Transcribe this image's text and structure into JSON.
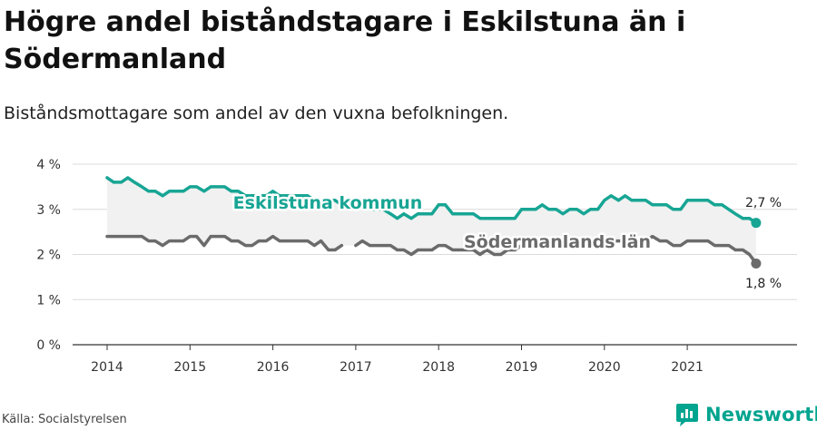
{
  "title": "Högre andel biståndstagare i Eskilstuna än i Södermanland",
  "subtitle": "Biståndsmottagare som andel av den vuxna befolkningen.",
  "source": "Källa: Socialstyrelsen",
  "brand": {
    "name": "Newsworthy",
    "icon": "newsworthy-logo-icon"
  },
  "colors": {
    "eskilstuna": "#18a594",
    "sodermanland": "#6b6b6b",
    "fill": "#f1f1f1"
  },
  "chart_data": {
    "type": "line",
    "x_ticks": [
      "2014",
      "2015",
      "2016",
      "2017",
      "2018",
      "2019",
      "2020",
      "2021"
    ],
    "y_ticks": [
      "0 %",
      "1 %",
      "2 %",
      "3 %",
      "4 %"
    ],
    "ylim": [
      0,
      4
    ],
    "grid": true,
    "xlim": [
      2014,
      2022.08
    ],
    "series": [
      {
        "name": "Eskilstuna kommun",
        "end_label": "2,7 %",
        "points": [
          [
            2014.0,
            3.7
          ],
          [
            2014.08,
            3.6
          ],
          [
            2014.17,
            3.6
          ],
          [
            2014.25,
            3.7
          ],
          [
            2014.33,
            3.6
          ],
          [
            2014.42,
            3.5
          ],
          [
            2014.5,
            3.4
          ],
          [
            2014.58,
            3.4
          ],
          [
            2014.67,
            3.3
          ],
          [
            2014.75,
            3.4
          ],
          [
            2014.83,
            3.4
          ],
          [
            2014.92,
            3.4
          ],
          [
            2015.0,
            3.5
          ],
          [
            2015.08,
            3.5
          ],
          [
            2015.17,
            3.4
          ],
          [
            2015.25,
            3.5
          ],
          [
            2015.33,
            3.5
          ],
          [
            2015.42,
            3.5
          ],
          [
            2015.5,
            3.4
          ],
          [
            2015.58,
            3.4
          ],
          [
            2015.67,
            3.3
          ],
          [
            2015.75,
            3.3
          ],
          [
            2015.83,
            3.3
          ],
          [
            2015.92,
            3.3
          ],
          [
            2016.0,
            3.4
          ],
          [
            2016.08,
            3.3
          ],
          [
            2016.17,
            3.3
          ],
          [
            2016.25,
            3.3
          ],
          [
            2016.33,
            3.3
          ],
          [
            2016.42,
            3.3
          ],
          [
            2016.5,
            3.2
          ],
          [
            2016.58,
            3.2
          ],
          [
            2016.67,
            3.2
          ],
          [
            2016.75,
            3.2
          ],
          [
            2016.83,
            3.1
          ],
          [
            2016.92,
            3.1
          ],
          [
            2017.0,
            3.1
          ],
          [
            2017.08,
            3.1
          ],
          [
            2017.17,
            3.0
          ],
          [
            2017.25,
            3.0
          ],
          [
            2017.33,
            3.0
          ],
          [
            2017.42,
            2.9
          ],
          [
            2017.5,
            2.8
          ],
          [
            2017.58,
            2.9
          ],
          [
            2017.67,
            2.8
          ],
          [
            2017.75,
            2.9
          ],
          [
            2017.83,
            2.9
          ],
          [
            2017.92,
            2.9
          ],
          [
            2018.0,
            3.1
          ],
          [
            2018.08,
            3.1
          ],
          [
            2018.17,
            2.9
          ],
          [
            2018.25,
            2.9
          ],
          [
            2018.33,
            2.9
          ],
          [
            2018.42,
            2.9
          ],
          [
            2018.5,
            2.8
          ],
          [
            2018.58,
            2.8
          ],
          [
            2018.67,
            2.8
          ],
          [
            2018.75,
            2.8
          ],
          [
            2018.83,
            2.8
          ],
          [
            2018.92,
            2.8
          ],
          [
            2019.0,
            3.0
          ],
          [
            2019.08,
            3.0
          ],
          [
            2019.17,
            3.0
          ],
          [
            2019.25,
            3.1
          ],
          [
            2019.33,
            3.0
          ],
          [
            2019.42,
            3.0
          ],
          [
            2019.5,
            2.9
          ],
          [
            2019.58,
            3.0
          ],
          [
            2019.67,
            3.0
          ],
          [
            2019.75,
            2.9
          ],
          [
            2019.83,
            3.0
          ],
          [
            2019.92,
            3.0
          ],
          [
            2020.0,
            3.2
          ],
          [
            2020.08,
            3.3
          ],
          [
            2020.17,
            3.2
          ],
          [
            2020.25,
            3.3
          ],
          [
            2020.33,
            3.2
          ],
          [
            2020.42,
            3.2
          ],
          [
            2020.5,
            3.2
          ],
          [
            2020.58,
            3.1
          ],
          [
            2020.67,
            3.1
          ],
          [
            2020.75,
            3.1
          ],
          [
            2020.83,
            3.0
          ],
          [
            2020.92,
            3.0
          ],
          [
            2021.0,
            3.2
          ],
          [
            2021.08,
            3.2
          ],
          [
            2021.17,
            3.2
          ],
          [
            2021.25,
            3.2
          ],
          [
            2021.33,
            3.1
          ],
          [
            2021.42,
            3.1
          ],
          [
            2021.5,
            3.0
          ],
          [
            2021.58,
            2.9
          ],
          [
            2021.67,
            2.8
          ],
          [
            2021.75,
            2.8
          ],
          [
            2021.83,
            2.7
          ]
        ]
      },
      {
        "name": "Södermanlands län",
        "end_label": "1,8 %",
        "points": [
          [
            2014.0,
            2.4
          ],
          [
            2014.08,
            2.4
          ],
          [
            2014.17,
            2.4
          ],
          [
            2014.25,
            2.4
          ],
          [
            2014.33,
            2.4
          ],
          [
            2014.42,
            2.4
          ],
          [
            2014.5,
            2.3
          ],
          [
            2014.58,
            2.3
          ],
          [
            2014.67,
            2.2
          ],
          [
            2014.75,
            2.3
          ],
          [
            2014.83,
            2.3
          ],
          [
            2014.92,
            2.3
          ],
          [
            2015.0,
            2.4
          ],
          [
            2015.08,
            2.4
          ],
          [
            2015.17,
            2.2
          ],
          [
            2015.25,
            2.4
          ],
          [
            2015.33,
            2.4
          ],
          [
            2015.42,
            2.4
          ],
          [
            2015.5,
            2.3
          ],
          [
            2015.58,
            2.3
          ],
          [
            2015.67,
            2.2
          ],
          [
            2015.75,
            2.2
          ],
          [
            2015.83,
            2.3
          ],
          [
            2015.92,
            2.3
          ],
          [
            2016.0,
            2.4
          ],
          [
            2016.08,
            2.3
          ],
          [
            2016.17,
            2.3
          ],
          [
            2016.25,
            2.3
          ],
          [
            2016.33,
            2.3
          ],
          [
            2016.42,
            2.3
          ],
          [
            2016.5,
            2.2
          ],
          [
            2016.58,
            2.3
          ],
          [
            2016.67,
            2.1
          ],
          [
            2016.75,
            2.1
          ],
          [
            2016.83,
            2.2
          ],
          null,
          [
            2017.0,
            2.2
          ],
          [
            2017.08,
            2.3
          ],
          [
            2017.17,
            2.2
          ],
          [
            2017.25,
            2.2
          ],
          [
            2017.33,
            2.2
          ],
          [
            2017.42,
            2.2
          ],
          [
            2017.5,
            2.1
          ],
          [
            2017.58,
            2.1
          ],
          [
            2017.67,
            2.0
          ],
          [
            2017.75,
            2.1
          ],
          [
            2017.83,
            2.1
          ],
          [
            2017.92,
            2.1
          ],
          [
            2018.0,
            2.2
          ],
          [
            2018.08,
            2.2
          ],
          [
            2018.17,
            2.1
          ],
          [
            2018.25,
            2.1
          ],
          [
            2018.33,
            2.1
          ],
          [
            2018.42,
            2.1
          ],
          [
            2018.5,
            2.0
          ],
          [
            2018.58,
            2.1
          ],
          [
            2018.67,
            2.0
          ],
          [
            2018.75,
            2.0
          ],
          [
            2018.83,
            2.1
          ],
          [
            2018.92,
            2.1
          ],
          [
            2019.0,
            2.2
          ],
          [
            2019.08,
            2.2
          ],
          [
            2019.17,
            2.2
          ],
          [
            2019.25,
            2.3
          ],
          [
            2019.33,
            2.2
          ],
          [
            2019.42,
            2.2
          ],
          [
            2019.5,
            2.2
          ],
          [
            2019.58,
            2.2
          ],
          [
            2019.67,
            2.2
          ],
          [
            2019.75,
            2.2
          ],
          [
            2019.83,
            2.2
          ],
          [
            2019.92,
            2.2
          ],
          [
            2020.0,
            2.3
          ],
          [
            2020.08,
            2.3
          ],
          [
            2020.17,
            2.3
          ],
          [
            2020.25,
            2.3
          ],
          [
            2020.33,
            2.3
          ],
          [
            2020.42,
            2.3
          ],
          [
            2020.5,
            2.3
          ],
          [
            2020.58,
            2.4
          ],
          [
            2020.67,
            2.3
          ],
          [
            2020.75,
            2.3
          ],
          [
            2020.83,
            2.2
          ],
          [
            2020.92,
            2.2
          ],
          [
            2021.0,
            2.3
          ],
          [
            2021.08,
            2.3
          ],
          [
            2021.17,
            2.3
          ],
          [
            2021.25,
            2.3
          ],
          [
            2021.33,
            2.2
          ],
          [
            2021.42,
            2.2
          ],
          [
            2021.5,
            2.2
          ],
          [
            2021.58,
            2.1
          ],
          [
            2021.67,
            2.1
          ],
          [
            2021.75,
            2.0
          ],
          [
            2021.83,
            1.8
          ]
        ]
      }
    ]
  }
}
